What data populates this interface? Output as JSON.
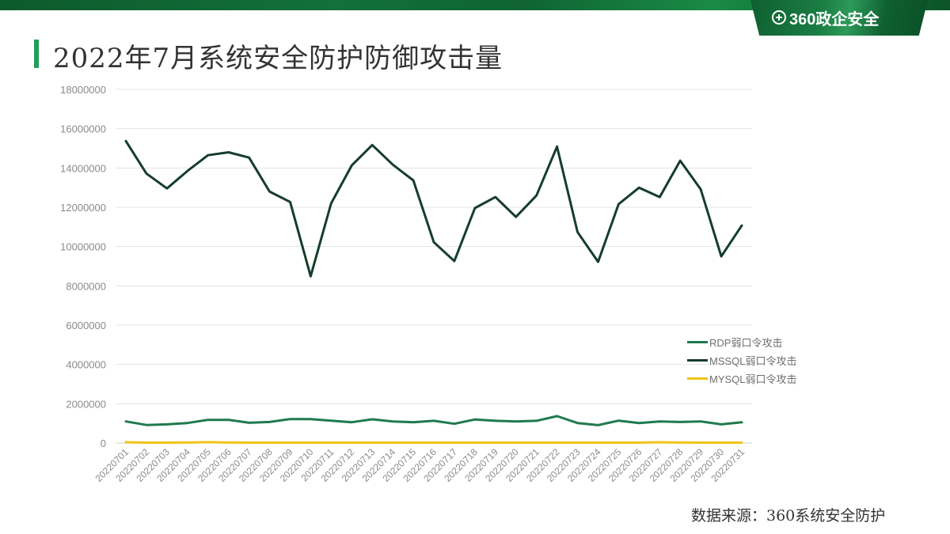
{
  "header": {
    "logo_text": "360政企安全",
    "title": "2022年7月系统安全防护防御攻击量"
  },
  "footer": {
    "source": "数据来源：360系统安全防护"
  },
  "colors": {
    "accent": "#1fa055",
    "rdp": "#1f7a4d",
    "mssql": "#163d2b",
    "mysql": "#f0c419",
    "grid": "#e3e3e3"
  },
  "chart_data": {
    "type": "line",
    "title": "2022年7月系统安全防护防御攻击量",
    "xlabel": "",
    "ylabel": "",
    "ylim": [
      0,
      18000000
    ],
    "yticks": [
      0,
      2000000,
      4000000,
      6000000,
      8000000,
      10000000,
      12000000,
      14000000,
      16000000,
      18000000
    ],
    "grid": true,
    "legend_position": "right",
    "categories": [
      "20220701",
      "20220702",
      "20220703",
      "20220704",
      "20220705",
      "20220706",
      "20220707",
      "20220708",
      "20220709",
      "20220710",
      "20220711",
      "20220712",
      "20220713",
      "20220714",
      "20220715",
      "20220716",
      "20220717",
      "20220718",
      "20220719",
      "20220720",
      "20220721",
      "20220722",
      "20220723",
      "20220724",
      "20220725",
      "20220726",
      "20220727",
      "20220728",
      "20220729",
      "20220730",
      "20220731"
    ],
    "series": [
      {
        "name": "RDP弱口令攻击",
        "color": "#1f7a4d",
        "values": [
          1100000,
          920000,
          950000,
          1020000,
          1180000,
          1180000,
          1030000,
          1070000,
          1220000,
          1220000,
          1140000,
          1060000,
          1210000,
          1100000,
          1060000,
          1130000,
          980000,
          1200000,
          1130000,
          1100000,
          1130000,
          1370000,
          1020000,
          910000,
          1140000,
          1020000,
          1100000,
          1070000,
          1100000,
          950000,
          1060000
        ]
      },
      {
        "name": "MSSQL弱口令攻击",
        "color": "#163d2b",
        "values": [
          15370000,
          13720000,
          12960000,
          13850000,
          14650000,
          14800000,
          14530000,
          12800000,
          12270000,
          8490000,
          12200000,
          14130000,
          15170000,
          14170000,
          13370000,
          10220000,
          9260000,
          11960000,
          12520000,
          11510000,
          12600000,
          15090000,
          10740000,
          9220000,
          12160000,
          13000000,
          12520000,
          14370000,
          12920000,
          9500000,
          11070000
        ]
      },
      {
        "name": "MYSQL弱口令攻击",
        "color": "#f0c419",
        "values": [
          40000,
          20000,
          20000,
          25000,
          45000,
          25000,
          20000,
          20000,
          20000,
          20000,
          20000,
          20000,
          20000,
          20000,
          20000,
          20000,
          20000,
          20000,
          20000,
          20000,
          20000,
          20000,
          20000,
          20000,
          20000,
          20000,
          40000,
          25000,
          20000,
          20000,
          20000
        ]
      }
    ]
  }
}
